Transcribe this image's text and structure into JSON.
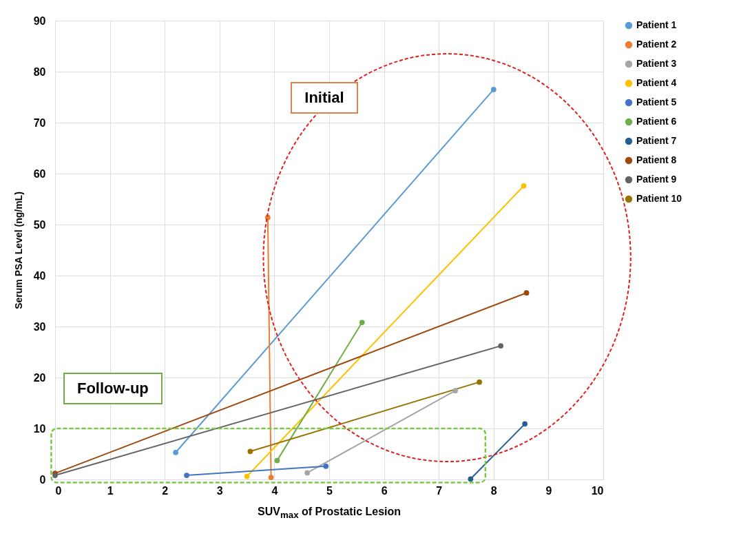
{
  "chart_data": {
    "type": "line",
    "xlabel": "SUV$_{max}$ of Prostatic Lesion",
    "ylabel": "Serum PSA Level (ng/mL)",
    "xlim": [
      0,
      10
    ],
    "xticks": [
      0,
      1,
      2,
      3,
      4,
      5,
      6,
      7,
      8,
      9,
      10
    ],
    "ylim": [
      0,
      90
    ],
    "yticks": [
      0,
      10,
      20,
      30,
      40,
      50,
      60,
      70,
      80,
      90
    ],
    "grid": true,
    "legend": "right",
    "marker": "circle",
    "line_style": "solid",
    "annotations": [
      "Initial",
      "Follow-up"
    ],
    "series": [
      {
        "name": "Patient 1",
        "color": "#5b9bd5",
        "x": [
          2.2,
          8.0
        ],
        "values": [
          5.3,
          76.5
        ]
      },
      {
        "name": "Patient 2",
        "color": "#ed7d31",
        "x": [
          3.88,
          3.94
        ],
        "values": [
          51.4,
          0.4
        ]
      },
      {
        "name": "Patient 3",
        "color": "#a5a5a5",
        "x": [
          4.6,
          7.3
        ],
        "values": [
          1.3,
          17.4
        ]
      },
      {
        "name": "Patient 4",
        "color": "#ffc000",
        "x": [
          3.5,
          8.55
        ],
        "values": [
          0.6,
          57.6
        ]
      },
      {
        "name": "Patient 5",
        "color": "#4472c4",
        "x": [
          2.4,
          4.94
        ],
        "values": [
          0.8,
          2.6
        ]
      },
      {
        "name": "Patient 6",
        "color": "#70ad47",
        "x": [
          4.05,
          5.6
        ],
        "values": [
          3.7,
          30.8
        ]
      },
      {
        "name": "Patient 7",
        "color": "#255e91",
        "x": [
          7.58,
          8.57
        ],
        "values": [
          0.1,
          10.9
        ]
      },
      {
        "name": "Patient 8",
        "color": "#9e480e",
        "x": [
          0,
          8.6
        ],
        "values": [
          1.2,
          36.6
        ]
      },
      {
        "name": "Patient 9",
        "color": "#636363",
        "x": [
          0,
          8.13
        ],
        "values": [
          0.8,
          26.2
        ]
      },
      {
        "name": "Patient 10",
        "color": "#997300",
        "x": [
          3.56,
          7.74
        ],
        "values": [
          5.5,
          19.1
        ]
      }
    ]
  }
}
